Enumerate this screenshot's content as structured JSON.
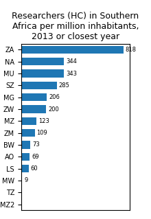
{
  "chart_data": {
    "type": "bar",
    "orientation": "horizontal",
    "title": "Researchers (HC) in Southern Africa per million inhabitants, 2013 or closest year",
    "categories": [
      "ZA",
      "NA",
      "MU",
      "SZ",
      "MG",
      "ZW",
      "MZ",
      "ZM",
      "BW",
      "AO",
      "LS",
      "MW",
      "TZ",
      "MZ2"
    ],
    "values": [
      818,
      344,
      343,
      285,
      206,
      200,
      123,
      109,
      73,
      69,
      60,
      9,
      4,
      2
    ],
    "value_labels": [
      "818",
      "344",
      "343",
      "285",
      "206",
      "200",
      "123",
      "109",
      "73",
      "69",
      "60",
      "9",
      null,
      null
    ],
    "data_labels": true,
    "xlim": [
      0,
      870
    ],
    "tick_labels": "y",
    "grid": false
  }
}
